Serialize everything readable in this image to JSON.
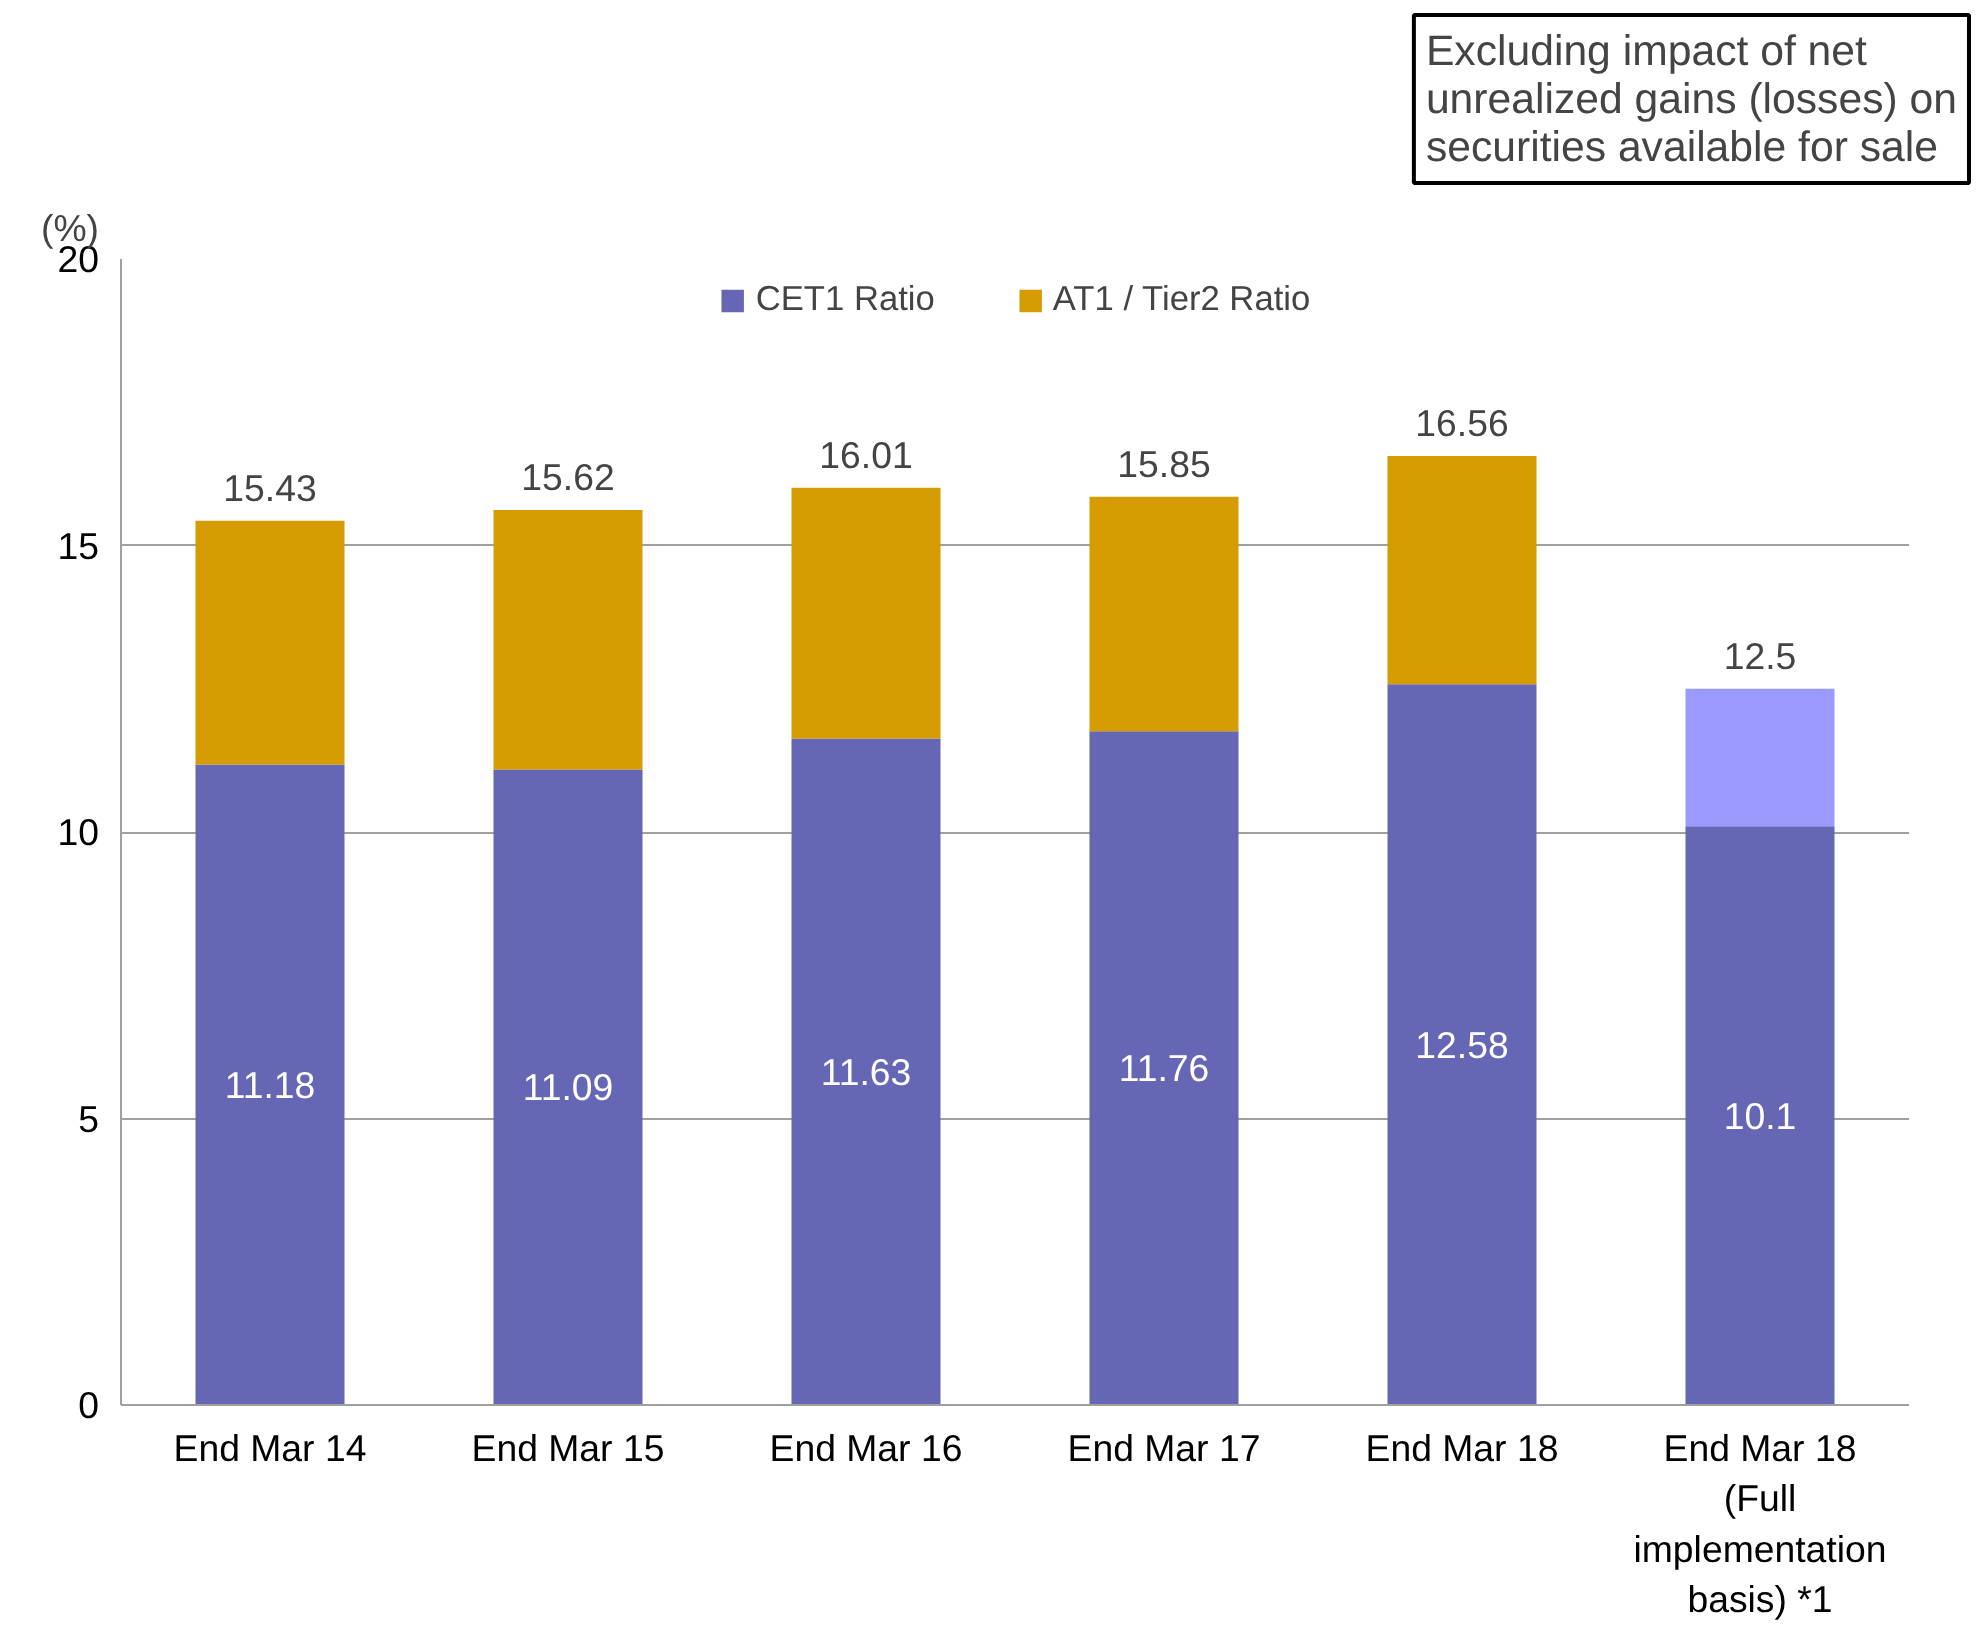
{
  "chart_data": {
    "type": "bar",
    "stacked": true,
    "ylabel": "(%)",
    "categories": [
      "End Mar 14",
      "End Mar 15",
      "End Mar 16",
      "End Mar 17",
      "End Mar 18",
      "End Mar 18\n(Full\nimplementation\nbasis) *1"
    ],
    "series": [
      {
        "name": "CET1 Ratio",
        "color": "#6567b5",
        "values": [
          11.18,
          11.09,
          11.63,
          11.76,
          12.58,
          10.1
        ],
        "value_labels": [
          "11.18",
          "11.09",
          "11.63",
          "11.76",
          "12.58",
          "10.1"
        ]
      },
      {
        "name": "AT1 / Tier2 Ratio",
        "color": "#d49c00",
        "values": [
          4.25,
          4.53,
          4.38,
          4.09,
          3.98,
          null
        ]
      },
      {
        "color": "#9999ff",
        "values": [
          null,
          null,
          null,
          null,
          null,
          2.4
        ]
      }
    ],
    "totals": [
      "15.43",
      "15.62",
      "16.01",
      "15.85",
      "16.56",
      "12.5"
    ],
    "ylim": [
      0,
      20
    ],
    "yticks": [
      0,
      5,
      10,
      15,
      20
    ],
    "grid": "y",
    "legend": "top",
    "annotations": [
      "Excluding impact of net\nunrealized gains (losses) on\nsecurities available for sale"
    ]
  }
}
